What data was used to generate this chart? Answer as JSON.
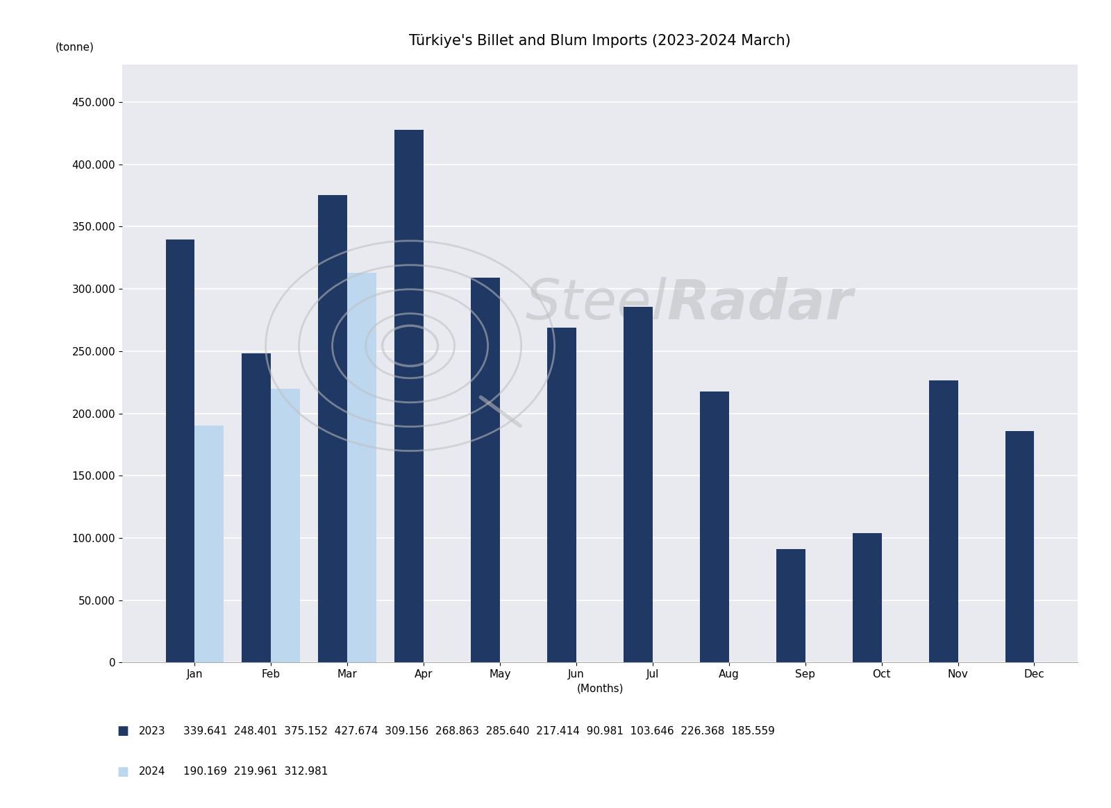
{
  "title": "Türkiye's Billet and Blum Imports (2023-2024 March)",
  "ylabel": "(tonne)",
  "xlabel": "(Months)",
  "months": [
    "Jan",
    "Feb",
    "Mar",
    "Apr",
    "May",
    "Jun",
    "Jul",
    "Aug",
    "Sep",
    "Oct",
    "Nov",
    "Dec"
  ],
  "data_2023": [
    339641,
    248401,
    375152,
    427674,
    309156,
    268863,
    285640,
    217414,
    90981,
    103646,
    226368,
    185559
  ],
  "data_2024": [
    190169,
    219961,
    312981,
    null,
    null,
    null,
    null,
    null,
    null,
    null,
    null,
    null
  ],
  "color_2023": "#1F3864",
  "color_2024": "#BDD7EE",
  "legend_2023": "2023",
  "legend_2024": "2024",
  "legend_values_2023": [
    "339.641",
    "248.401",
    "375.152",
    "427.674",
    "309.156",
    "268.863",
    "285.640",
    "217.414",
    "90.981",
    "103.646",
    "226.368",
    "185.559"
  ],
  "legend_values_2024": [
    "190.169",
    "219.961",
    "312.981"
  ],
  "background_color": "#FFFFFF",
  "plot_bg_color": "#E8EAF0",
  "ylim": [
    0,
    480000
  ],
  "yticks": [
    0,
    50000,
    100000,
    150000,
    200000,
    250000,
    300000,
    350000,
    400000,
    450000
  ],
  "title_fontsize": 15,
  "axis_label_fontsize": 11,
  "tick_fontsize": 11,
  "legend_fontsize": 11,
  "bar_width": 0.38,
  "watermark_color": "#BEBEBE"
}
